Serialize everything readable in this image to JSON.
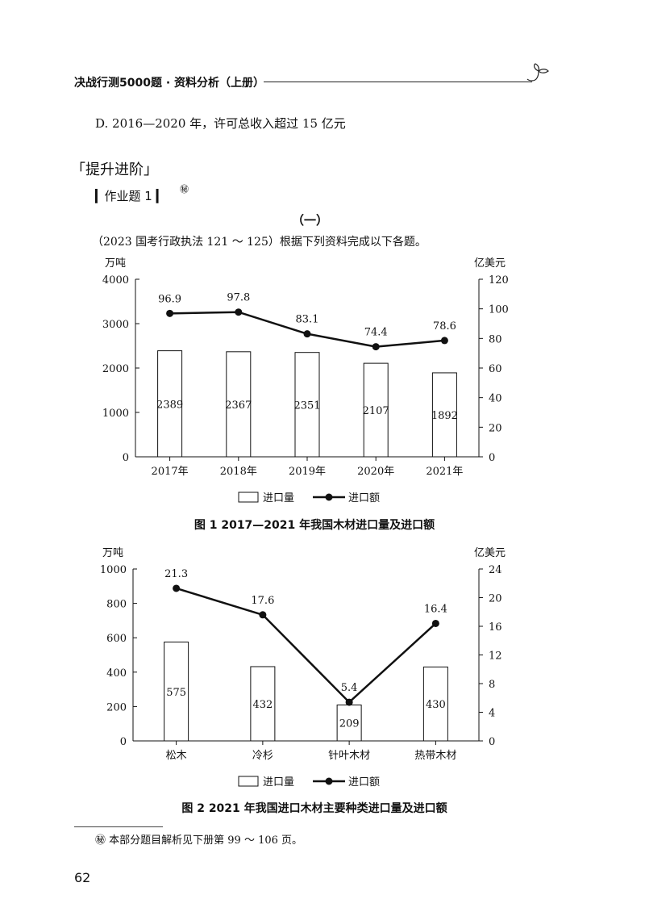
{
  "header": {
    "title": "决战行测5000题 · 资料分析（上册）"
  },
  "question": {
    "option_d": "D. 2016—2020 年，许可总收入超过 15 亿元"
  },
  "section": {
    "heading": "「提升进阶」"
  },
  "homework": {
    "label": "▎作业题 1 ▎",
    "mark": "㊙"
  },
  "part": {
    "number": "（一）"
  },
  "intro": "（2023  国考行政执法  121 ～ 125）根据下列资料完成以下各题。",
  "chart_data": [
    {
      "type": "bar",
      "title": "图 1   2017—2021 年我国木材进口量及进口额",
      "categories": [
        "2017年",
        "2018年",
        "2019年",
        "2020年",
        "2021年"
      ],
      "left_axis": {
        "unit": "万吨",
        "ylim": [
          0,
          4000
        ],
        "ticks": [
          0,
          1000,
          2000,
          3000,
          4000
        ]
      },
      "right_axis": {
        "unit": "亿美元",
        "ylim": [
          0,
          120
        ],
        "ticks": [
          0,
          20,
          40,
          60,
          80,
          100,
          120
        ]
      },
      "series": [
        {
          "name": "进口量",
          "type": "bar",
          "axis": "left",
          "values": [
            2389,
            2367,
            2351,
            2107,
            1892
          ],
          "labels": [
            "2389",
            "2367",
            "2351",
            "2107",
            "1892"
          ]
        },
        {
          "name": "进口额",
          "type": "line",
          "axis": "right",
          "values": [
            96.9,
            97.8,
            83.1,
            74.4,
            78.6
          ],
          "labels": [
            "96.9",
            "97.8",
            "83.1",
            "74.4",
            "78.6"
          ]
        }
      ],
      "legend_position": "bottom-center",
      "grid": false
    },
    {
      "type": "bar",
      "title": "图 2   2021 年我国进口木材主要种类进口量及进口额",
      "categories": [
        "松木",
        "冷杉",
        "针叶木材",
        "热带木材"
      ],
      "left_axis": {
        "unit": "万吨",
        "ylim": [
          0,
          1000
        ],
        "ticks": [
          0,
          200,
          400,
          600,
          800,
          1000
        ]
      },
      "right_axis": {
        "unit": "亿美元",
        "ylim": [
          0,
          24
        ],
        "ticks": [
          0,
          4,
          8,
          12,
          16,
          20,
          24
        ]
      },
      "series": [
        {
          "name": "进口量",
          "type": "bar",
          "axis": "left",
          "values": [
            575,
            432,
            209,
            430
          ],
          "labels": [
            "575",
            "432",
            "209",
            "430"
          ]
        },
        {
          "name": "进口额",
          "type": "line",
          "axis": "right",
          "values": [
            21.3,
            17.6,
            5.4,
            16.4
          ],
          "labels": [
            "21.3",
            "17.6",
            "5.4",
            "16.4"
          ]
        }
      ],
      "legend_position": "bottom-center",
      "grid": false
    }
  ],
  "footnote": "㊙ 本部分题目解析见下册第 99 ～ 106 页。",
  "page_number": "62"
}
